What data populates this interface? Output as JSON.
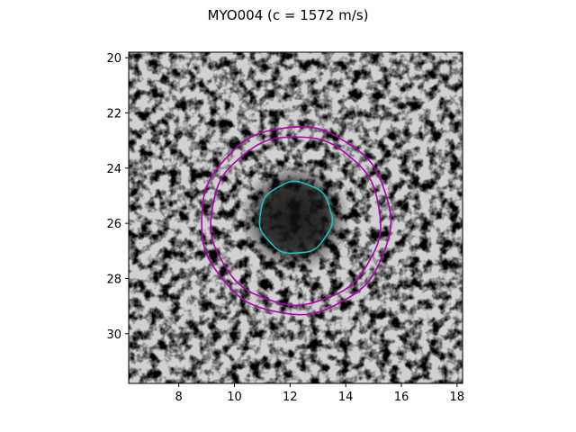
{
  "figure": {
    "title": "MYO004 (c = 1572 m/s)"
  },
  "image": {
    "description_colormap": "gray",
    "x_range": [
      6.2,
      18.2
    ],
    "y_range": [
      19.8,
      31.8
    ],
    "y_inverted": true
  },
  "axes": {
    "x_ticks": [
      "8",
      "10",
      "12",
      "14",
      "16",
      "18"
    ],
    "y_ticks": [
      "20",
      "22",
      "24",
      "26",
      "28",
      "30"
    ]
  },
  "overlays": {
    "inner_contour": {
      "color": "#1fbfbf",
      "center": [
        12.2,
        25.8
      ],
      "radius": 1.3
    },
    "outer_contours": [
      {
        "color": "#b000b0",
        "center": [
          12.2,
          25.9
        ],
        "radius": 3.05
      },
      {
        "color": "#b000b0",
        "center": [
          12.2,
          25.9
        ],
        "radius": 3.4
      }
    ]
  }
}
